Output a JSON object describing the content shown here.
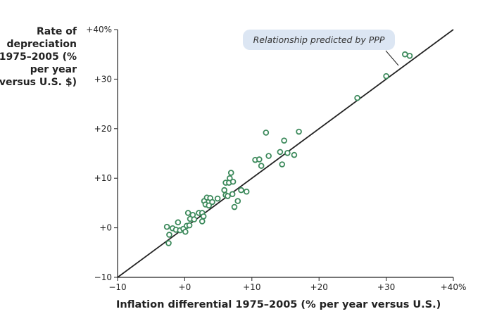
{
  "chart_data": {
    "type": "scatter",
    "xlabel": "Inflation differential 1975–2005 (% per year versus U.S.)",
    "ylabel": "Rate of depreciation 1975–2005 (% per year versus U.S. $)",
    "xlim": [
      -10,
      40
    ],
    "ylim": [
      -10,
      40
    ],
    "x_ticks": [
      "−10",
      "+0",
      "+10",
      "+20",
      "+30",
      "+40%"
    ],
    "y_ticks": [
      "−10",
      "+0",
      "+10",
      "+20",
      "+30",
      "+40%"
    ],
    "grid": false,
    "point_color": "#3d8a5c",
    "line_color": "#222222",
    "reference_line": {
      "label": "Relationship predicted by PPP",
      "from": [
        -10,
        -10
      ],
      "to": [
        40,
        40
      ]
    },
    "points": [
      [
        -2.65,
        0.2
      ],
      [
        -2.3,
        -1.4
      ],
      [
        -2.4,
        -3.1
      ],
      [
        -1.8,
        -0.1
      ],
      [
        -1.0,
        1.1
      ],
      [
        -1.3,
        -0.4
      ],
      [
        -0.7,
        -0.5
      ],
      [
        -0.2,
        -0.2
      ],
      [
        0.1,
        -0.8
      ],
      [
        0.3,
        0.4
      ],
      [
        0.7,
        0.5
      ],
      [
        0.5,
        3.0
      ],
      [
        0.8,
        1.8
      ],
      [
        1.2,
        2.6
      ],
      [
        1.4,
        1.7
      ],
      [
        2.1,
        3.0
      ],
      [
        2.6,
        3.0
      ],
      [
        2.8,
        2.3
      ],
      [
        2.6,
        1.3
      ],
      [
        2.9,
        5.4
      ],
      [
        3.3,
        6.1
      ],
      [
        3.8,
        6.0
      ],
      [
        3.1,
        4.7
      ],
      [
        3.6,
        4.5
      ],
      [
        4.1,
        5.2
      ],
      [
        4.9,
        5.9
      ],
      [
        5.9,
        7.6
      ],
      [
        6.1,
        6.6
      ],
      [
        6.4,
        6.4
      ],
      [
        7.1,
        6.8
      ],
      [
        6.1,
        9.1
      ],
      [
        6.6,
        9.1
      ],
      [
        7.2,
        9.3
      ],
      [
        6.7,
        10.0
      ],
      [
        6.9,
        11.1
      ],
      [
        7.9,
        5.4
      ],
      [
        7.4,
        4.2
      ],
      [
        8.4,
        7.6
      ],
      [
        9.2,
        7.3
      ],
      [
        12.1,
        19.2
      ],
      [
        17.0,
        19.4
      ],
      [
        14.8,
        17.6
      ],
      [
        10.5,
        13.7
      ],
      [
        11.1,
        13.8
      ],
      [
        11.4,
        12.5
      ],
      [
        12.5,
        14.5
      ],
      [
        14.2,
        15.3
      ],
      [
        15.3,
        15.1
      ],
      [
        16.3,
        14.7
      ],
      [
        14.5,
        12.8
      ],
      [
        25.7,
        26.2
      ],
      [
        30.0,
        30.6
      ],
      [
        32.8,
        35.0
      ],
      [
        33.5,
        34.7
      ]
    ]
  }
}
